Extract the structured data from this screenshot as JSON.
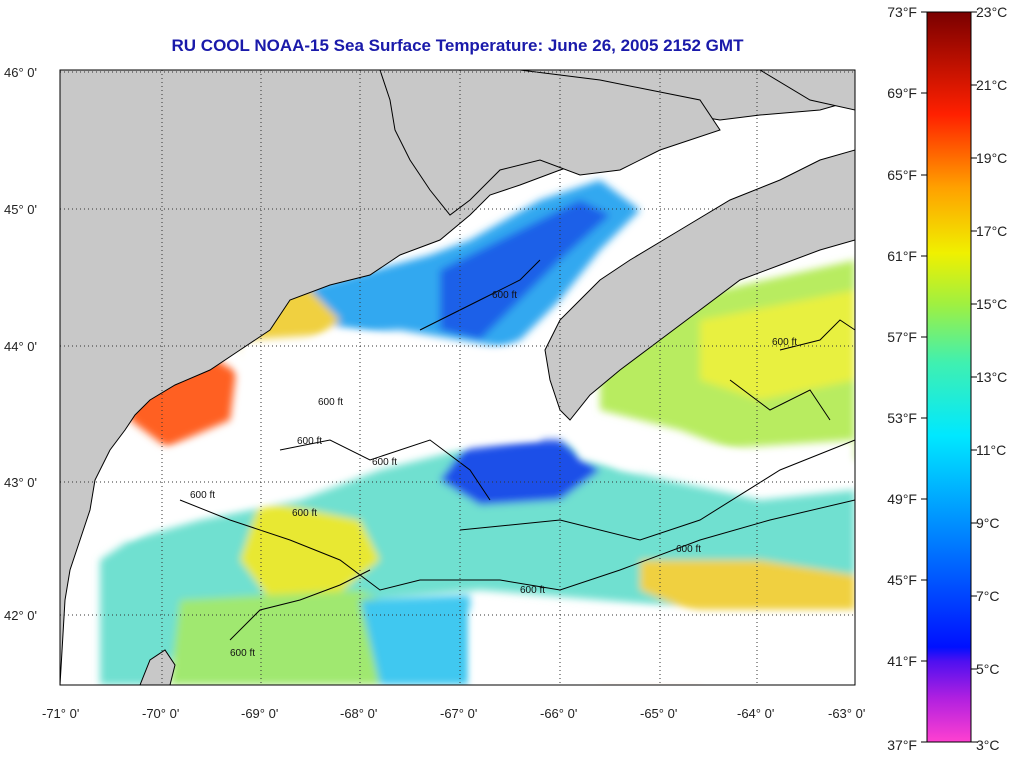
{
  "title": "RU COOL  NOAA-15  Sea Surface Temperature:  June 26, 2005 2152 GMT",
  "latitude_labels": [
    "46° 0'",
    "45° 0'",
    "44° 0'",
    "43° 0'",
    "42° 0'"
  ],
  "longitude_labels": [
    "-71° 0'",
    "-70° 0'",
    "-69° 0'",
    "-68° 0'",
    "-67° 0'",
    "-66° 0'",
    "-65° 0'",
    "-64° 0'",
    "-63° 0'"
  ],
  "contour_label": "600 ft",
  "colorbar": {
    "fahrenheit": [
      "73°F",
      "69°F",
      "65°F",
      "61°F",
      "57°F",
      "53°F",
      "49°F",
      "45°F",
      "41°F",
      "37°F"
    ],
    "celsius": [
      "23°C",
      "21°C",
      "19°C",
      "17°C",
      "15°C",
      "13°C",
      "11°C",
      "9°C",
      "7°C",
      "5°C",
      "3°C"
    ]
  },
  "colors": {
    "land": "#c8c8c8",
    "cloud": "#ffffff",
    "title": "#1a1aaa",
    "warm": "#ff5010",
    "cold": "#1030e8"
  }
}
